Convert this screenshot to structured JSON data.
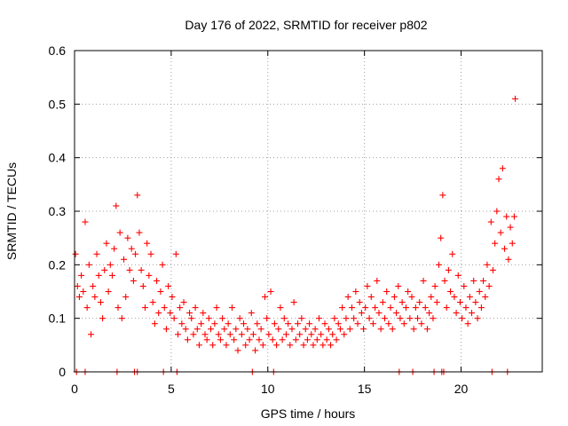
{
  "chart_data": {
    "type": "scatter",
    "title": "Day 176 of 2022, SRMTID for receiver p802",
    "xlabel": "GPS time / hours",
    "ylabel": "SRMTID / TECUs",
    "xlim": [
      0,
      24.2
    ],
    "ylim": [
      0,
      0.6
    ],
    "xticks": [
      0,
      5,
      10,
      15,
      20
    ],
    "xtick_labels": [
      "0",
      "5",
      "10",
      "15",
      "20"
    ],
    "yticks": [
      0,
      0.1,
      0.2,
      0.3,
      0.4,
      0.5,
      0.6
    ],
    "ytick_labels": [
      "0",
      "0.1",
      "0.2",
      "0.3",
      "0.4",
      "0.5",
      "0.6"
    ],
    "grid": true,
    "marker": "+",
    "color": "#ff0000",
    "series": [
      {
        "name": "SRMTID",
        "x": [
          0.05,
          0.15,
          0.25,
          0.35,
          0.45,
          0.55,
          0.65,
          0.75,
          0.85,
          0.95,
          1.05,
          1.15,
          1.25,
          1.35,
          1.45,
          1.55,
          1.65,
          1.75,
          1.85,
          1.95,
          2.05,
          2.15,
          2.25,
          2.35,
          2.45,
          2.55,
          2.65,
          2.75,
          2.85,
          2.95,
          3.05,
          3.15,
          3.25,
          3.35,
          3.45,
          3.55,
          3.65,
          3.75,
          3.85,
          3.95,
          4.05,
          4.15,
          4.25,
          4.35,
          4.45,
          4.55,
          4.65,
          4.75,
          4.85,
          4.95,
          5.05,
          5.15,
          5.25,
          5.35,
          5.45,
          5.55,
          5.65,
          5.75,
          5.85,
          5.95,
          6.05,
          6.15,
          6.25,
          6.35,
          6.45,
          6.55,
          6.65,
          6.75,
          6.85,
          6.95,
          7.05,
          7.15,
          7.25,
          7.35,
          7.45,
          7.55,
          7.65,
          7.75,
          7.85,
          7.95,
          8.05,
          8.15,
          8.25,
          8.35,
          8.45,
          8.55,
          8.65,
          8.75,
          8.85,
          8.95,
          9.05,
          9.15,
          9.25,
          9.35,
          9.45,
          9.55,
          9.65,
          9.75,
          9.85,
          9.95,
          10.05,
          10.15,
          10.25,
          10.35,
          10.45,
          10.55,
          10.65,
          10.75,
          10.85,
          10.95,
          11.05,
          11.15,
          11.25,
          11.35,
          11.45,
          11.55,
          11.65,
          11.75,
          11.85,
          11.95,
          12.05,
          12.15,
          12.25,
          12.35,
          12.45,
          12.55,
          12.65,
          12.75,
          12.85,
          12.95,
          13.05,
          13.15,
          13.25,
          13.35,
          13.45,
          13.55,
          13.65,
          13.75,
          13.85,
          13.95,
          14.05,
          14.15,
          14.25,
          14.35,
          14.45,
          14.55,
          14.65,
          14.75,
          14.85,
          14.95,
          15.05,
          15.15,
          15.25,
          15.35,
          15.45,
          15.55,
          15.65,
          15.75,
          15.85,
          15.95,
          16.05,
          16.15,
          16.25,
          16.35,
          16.45,
          16.55,
          16.65,
          16.75,
          16.85,
          16.95,
          17.05,
          17.15,
          17.25,
          17.35,
          17.45,
          17.55,
          17.65,
          17.75,
          17.85,
          17.95,
          18.05,
          18.15,
          18.25,
          18.35,
          18.45,
          18.55,
          18.65,
          18.75,
          18.85,
          18.95,
          19.05,
          19.15,
          19.25,
          19.35,
          19.45,
          19.55,
          19.65,
          19.75,
          19.85,
          19.95,
          20.05,
          20.15,
          20.25,
          20.35,
          20.45,
          20.55,
          20.65,
          20.75,
          20.85,
          20.95,
          21.05,
          21.15,
          21.25,
          21.35,
          21.45,
          21.55,
          21.65,
          21.75,
          21.85,
          21.95,
          22.05,
          22.15,
          22.25,
          22.35,
          22.45,
          22.55,
          22.65,
          22.75,
          0.1,
          0.55,
          2.2,
          3.1,
          3.25,
          4.6,
          5.3,
          9.2,
          10.3,
          16.8,
          17.5,
          18.6,
          19.0,
          19.1,
          21.6,
          22.4,
          22.8
        ],
        "y": [
          0.22,
          0.16,
          0.14,
          0.18,
          0.15,
          0.28,
          0.12,
          0.2,
          0.07,
          0.16,
          0.14,
          0.22,
          0.18,
          0.13,
          0.1,
          0.19,
          0.24,
          0.15,
          0.2,
          0.18,
          0.23,
          0.31,
          0.12,
          0.26,
          0.1,
          0.21,
          0.14,
          0.25,
          0.19,
          0.23,
          0.17,
          0.22,
          0.33,
          0.26,
          0.19,
          0.16,
          0.12,
          0.24,
          0.18,
          0.22,
          0.13,
          0.09,
          0.17,
          0.11,
          0.15,
          0.2,
          0.12,
          0.08,
          0.16,
          0.11,
          0.14,
          0.1,
          0.22,
          0.07,
          0.12,
          0.09,
          0.13,
          0.08,
          0.06,
          0.11,
          0.1,
          0.07,
          0.12,
          0.08,
          0.05,
          0.09,
          0.11,
          0.07,
          0.06,
          0.1,
          0.08,
          0.05,
          0.09,
          0.12,
          0.07,
          0.06,
          0.1,
          0.08,
          0.05,
          0.09,
          0.07,
          0.12,
          0.06,
          0.08,
          0.04,
          0.1,
          0.07,
          0.09,
          0.05,
          0.08,
          0.06,
          0.11,
          0.07,
          0.04,
          0.09,
          0.06,
          0.08,
          0.05,
          0.14,
          0.1,
          0.07,
          0.15,
          0.06,
          0.09,
          0.05,
          0.08,
          0.12,
          0.06,
          0.1,
          0.07,
          0.09,
          0.05,
          0.08,
          0.13,
          0.06,
          0.09,
          0.07,
          0.1,
          0.05,
          0.08,
          0.06,
          0.09,
          0.07,
          0.05,
          0.08,
          0.06,
          0.1,
          0.07,
          0.05,
          0.09,
          0.06,
          0.08,
          0.05,
          0.07,
          0.1,
          0.06,
          0.09,
          0.08,
          0.12,
          0.07,
          0.1,
          0.14,
          0.08,
          0.12,
          0.1,
          0.15,
          0.09,
          0.13,
          0.11,
          0.08,
          0.12,
          0.16,
          0.1,
          0.14,
          0.09,
          0.12,
          0.17,
          0.11,
          0.08,
          0.13,
          0.1,
          0.15,
          0.09,
          0.12,
          0.08,
          0.14,
          0.11,
          0.16,
          0.1,
          0.13,
          0.09,
          0.12,
          0.15,
          0.1,
          0.14,
          0.08,
          0.12,
          0.1,
          0.13,
          0.09,
          0.17,
          0.12,
          0.08,
          0.11,
          0.14,
          0.1,
          0.16,
          0.13,
          0.2,
          0.25,
          0.33,
          0.17,
          0.12,
          0.19,
          0.15,
          0.22,
          0.14,
          0.11,
          0.18,
          0.13,
          0.1,
          0.16,
          0.12,
          0.09,
          0.14,
          0.11,
          0.17,
          0.13,
          0.1,
          0.15,
          0.12,
          0.17,
          0.14,
          0.2,
          0.16,
          0.28,
          0.19,
          0.24,
          0.3,
          0.36,
          0.26,
          0.38,
          0.23,
          0.29,
          0.21,
          0.27,
          0.24,
          0.29,
          0.0,
          0.0,
          0.0,
          0.0,
          0.0,
          0.0,
          0.0,
          0.0,
          0.0,
          0.0,
          0.0,
          0.0,
          0.0,
          0.0,
          0.0,
          0.0,
          0.51
        ]
      }
    ]
  }
}
